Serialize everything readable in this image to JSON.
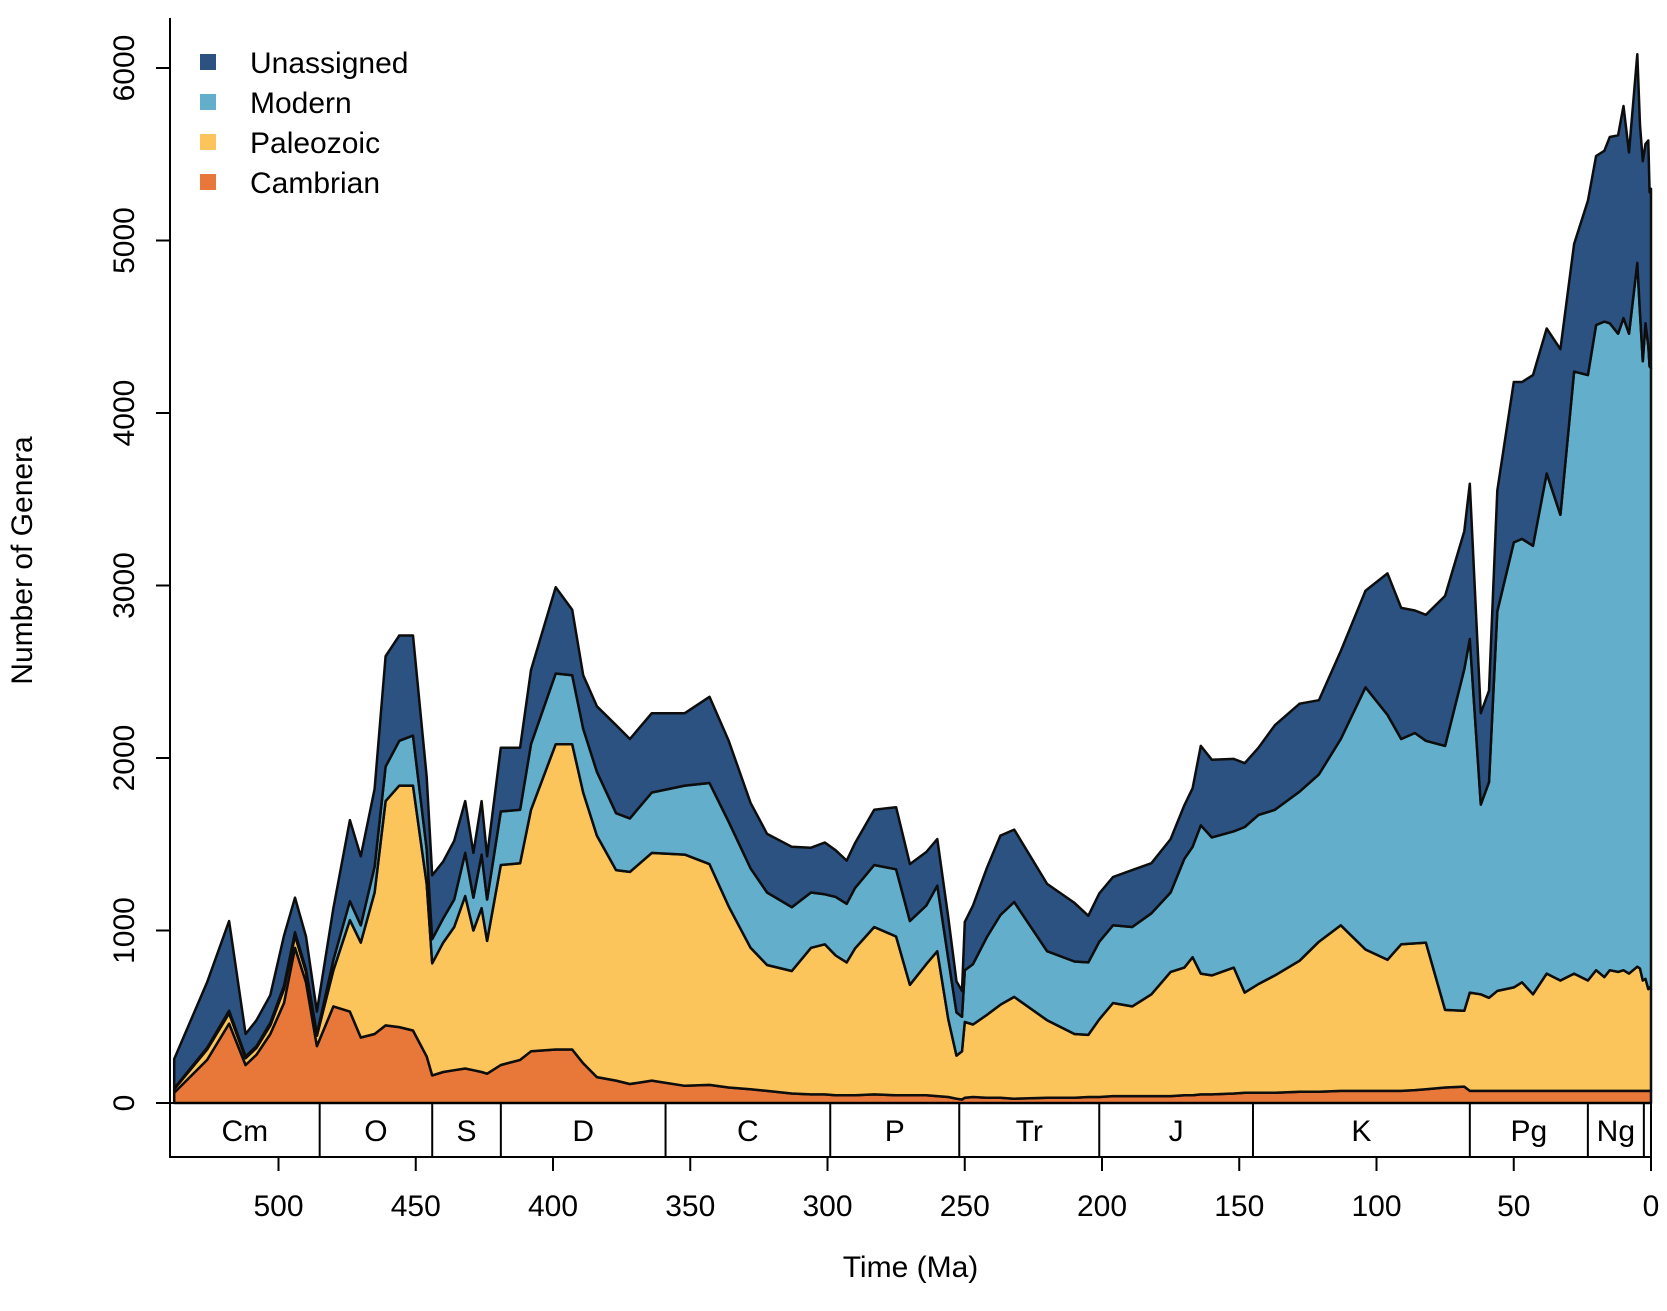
{
  "chart_data": {
    "type": "area",
    "stacked": true,
    "xlabel": "Time (Ma)",
    "ylabel": "Number of Genera",
    "x_reversed": true,
    "xlim": [
      541,
      0
    ],
    "ylim": [
      0,
      6200
    ],
    "xticks": [
      500,
      450,
      400,
      350,
      300,
      250,
      200,
      150,
      100,
      50,
      0
    ],
    "yticks": [
      0,
      1000,
      2000,
      3000,
      4000,
      5000,
      6000
    ],
    "legend_position": "top-left",
    "grid": false,
    "x": [
      538,
      526,
      518,
      512,
      508,
      503,
      498,
      494,
      490,
      486,
      480,
      474,
      470,
      465,
      461,
      456,
      451,
      446,
      444,
      440,
      436,
      432,
      429,
      426,
      424,
      419,
      412,
      408,
      399,
      393,
      389,
      384,
      377,
      372,
      364,
      352,
      343,
      336,
      328,
      322,
      313,
      306,
      301,
      297,
      293,
      290,
      283,
      275,
      270,
      264,
      260,
      256,
      253,
      251,
      250,
      247,
      242,
      237,
      232,
      220,
      210,
      205,
      201,
      196,
      189,
      182,
      175,
      170,
      167,
      164,
      160,
      152,
      148,
      143,
      137,
      128,
      121,
      113,
      104,
      96,
      91,
      86,
      82,
      75,
      68,
      66,
      62,
      59,
      56,
      50,
      47,
      43,
      38,
      33,
      28,
      23,
      20,
      17,
      15,
      12,
      10,
      8,
      5,
      4,
      3,
      2,
      1,
      0.5,
      0
    ],
    "series": [
      {
        "name": "Cambrian",
        "color": "#E8783A",
        "values": [
          60,
          250,
          460,
          220,
          280,
          400,
          580,
          900,
          700,
          330,
          560,
          530,
          380,
          400,
          450,
          440,
          420,
          270,
          160,
          180,
          190,
          200,
          190,
          180,
          170,
          220,
          250,
          300,
          310,
          310,
          230,
          150,
          130,
          110,
          130,
          100,
          105,
          90,
          80,
          70,
          55,
          50,
          50,
          45,
          45,
          45,
          50,
          45,
          45,
          45,
          40,
          35,
          25,
          20,
          30,
          35,
          30,
          30,
          25,
          30,
          30,
          35,
          35,
          40,
          40,
          40,
          40,
          45,
          45,
          50,
          50,
          55,
          60,
          60,
          60,
          65,
          65,
          70,
          70,
          70,
          70,
          75,
          80,
          90,
          95,
          70,
          70,
          70,
          70,
          70,
          70,
          70,
          70,
          70,
          70,
          70,
          70,
          70,
          70,
          70,
          70,
          70,
          70,
          70,
          70,
          70,
          70,
          70,
          70
        ]
      },
      {
        "name": "Paleozoic",
        "color": "#FBC55B",
        "values": [
          20,
          60,
          60,
          40,
          40,
          50,
          80,
          70,
          60,
          60,
          210,
          530,
          550,
          820,
          1300,
          1400,
          1420,
          1000,
          650,
          750,
          830,
          1000,
          810,
          950,
          770,
          1160,
          1140,
          1400,
          1770,
          1770,
          1570,
          1400,
          1220,
          1230,
          1320,
          1340,
          1280,
          1050,
          820,
          730,
          710,
          850,
          870,
          810,
          770,
          850,
          970,
          920,
          640,
          760,
          840,
          450,
          250,
          280,
          440,
          420,
          480,
          540,
          590,
          450,
          370,
          360,
          450,
          540,
          520,
          590,
          720,
          740,
          800,
          700,
          690,
          730,
          580,
          630,
          680,
          760,
          870,
          960,
          820,
          760,
          850,
          850,
          850,
          450,
          440,
          570,
          560,
          540,
          580,
          600,
          630,
          560,
          680,
          640,
          680,
          640,
          700,
          660,
          700,
          690,
          700,
          680,
          720,
          710,
          640,
          650,
          590,
          600,
          590
        ]
      },
      {
        "name": "Modern",
        "color": "#63AFCB",
        "values": [
          5,
          10,
          15,
          10,
          10,
          15,
          20,
          20,
          15,
          10,
          60,
          110,
          100,
          150,
          200,
          260,
          290,
          200,
          140,
          140,
          160,
          250,
          190,
          310,
          240,
          310,
          310,
          380,
          410,
          400,
          370,
          370,
          330,
          310,
          350,
          400,
          470,
          490,
          460,
          420,
          370,
          320,
          290,
          340,
          340,
          350,
          360,
          390,
          370,
          340,
          380,
          350,
          250,
          200,
          300,
          350,
          450,
          520,
          550,
          400,
          420,
          420,
          450,
          450,
          460,
          470,
          460,
          630,
          640,
          860,
          800,
          790,
          960,
          980,
          960,
          980,
          970,
          1080,
          1520,
          1420,
          1190,
          1220,
          1170,
          1530,
          1980,
          2050,
          1100,
          1250,
          2200,
          2580,
          2570,
          2600,
          2900,
          2700,
          3490,
          3510,
          3740,
          3800,
          3750,
          3700,
          3780,
          3710,
          4080,
          3800,
          3590,
          3800,
          3730,
          3600,
          3600
        ]
      },
      {
        "name": "Unassigned",
        "color": "#2C5282",
        "values": [
          170,
          380,
          520,
          130,
          150,
          160,
          290,
          200,
          190,
          130,
          300,
          470,
          400,
          450,
          640,
          610,
          580,
          420,
          370,
          330,
          340,
          300,
          260,
          310,
          250,
          370,
          360,
          430,
          500,
          380,
          310,
          380,
          510,
          460,
          460,
          420,
          500,
          470,
          380,
          340,
          350,
          260,
          300,
          270,
          250,
          260,
          320,
          360,
          330,
          310,
          270,
          240,
          180,
          150,
          280,
          340,
          400,
          460,
          420,
          390,
          340,
          270,
          280,
          280,
          330,
          290,
          310,
          310,
          340,
          460,
          450,
          420,
          370,
          390,
          490,
          510,
          430,
          510,
          560,
          820,
          760,
          710,
          730,
          870,
          800,
          900,
          530,
          530,
          700,
          930,
          910,
          990,
          840,
          960,
          740,
          1010,
          980,
          990,
          1080,
          1150,
          1230,
          1050,
          1210,
          1090,
          1160,
          1040,
          1190,
          1010,
          1040
        ]
      }
    ],
    "periods": [
      {
        "label": "Cm",
        "start": 541,
        "end": 485
      },
      {
        "label": "O",
        "start": 485,
        "end": 444
      },
      {
        "label": "S",
        "start": 444,
        "end": 419
      },
      {
        "label": "D",
        "start": 419,
        "end": 359
      },
      {
        "label": "C",
        "start": 359,
        "end": 299
      },
      {
        "label": "P",
        "start": 299,
        "end": 252
      },
      {
        "label": "Tr",
        "start": 252,
        "end": 201
      },
      {
        "label": "J",
        "start": 201,
        "end": 145
      },
      {
        "label": "K",
        "start": 145,
        "end": 66
      },
      {
        "label": "Pg",
        "start": 66,
        "end": 23
      },
      {
        "label": "Ng",
        "start": 23,
        "end": 2.6
      },
      {
        "label": "",
        "start": 2.6,
        "end": 0
      }
    ]
  }
}
